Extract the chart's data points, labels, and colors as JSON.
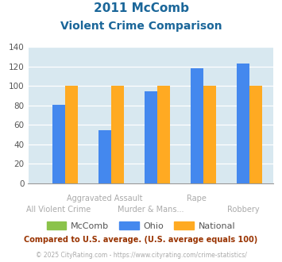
{
  "title_line1": "2011 McComb",
  "title_line2": "Violent Crime Comparison",
  "mccomb_values": [
    0,
    0,
    0,
    0,
    0
  ],
  "ohio_values": [
    81,
    55,
    95,
    118,
    123
  ],
  "national_values": [
    100,
    100,
    100,
    100,
    100
  ],
  "mccomb_color": "#8bc34a",
  "ohio_color": "#4488ee",
  "national_color": "#ffaa22",
  "title_color": "#1a6699",
  "plot_bg_color": "#d8e8f0",
  "fig_bg_color": "#ffffff",
  "ylim": [
    0,
    140
  ],
  "yticks": [
    0,
    20,
    40,
    60,
    80,
    100,
    120,
    140
  ],
  "upper_labels": [
    "Aggravated Assault",
    "Rape"
  ],
  "upper_indices": [
    1,
    3
  ],
  "lower_labels": [
    "All Violent Crime",
    "Murder & Mans...",
    "Robbery"
  ],
  "lower_indices": [
    0,
    2,
    4
  ],
  "legend_labels": [
    "McComb",
    "Ohio",
    "National"
  ],
  "footnote1": "Compared to U.S. average. (U.S. average equals 100)",
  "footnote2": "© 2025 CityRating.com - https://www.cityrating.com/crime-statistics/",
  "footnote1_color": "#993300",
  "footnote2_color": "#aaaaaa",
  "label_color": "#aaaaaa"
}
